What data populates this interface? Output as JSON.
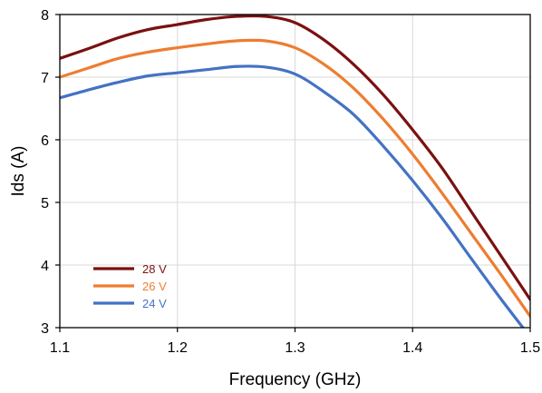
{
  "chart_data": {
    "type": "line",
    "xlabel": "Frequency (GHz)",
    "ylabel": "Ids (A)",
    "xlim": [
      1.1,
      1.5
    ],
    "ylim": [
      3,
      8
    ],
    "xticks": [
      1.1,
      1.2,
      1.3,
      1.4,
      1.5
    ],
    "xtick_labels": [
      "1.1",
      "1.2",
      "1.3",
      "1.4",
      "1.5"
    ],
    "yticks": [
      3,
      4,
      5,
      6,
      7,
      8
    ],
    "ytick_labels": [
      "3",
      "4",
      "5",
      "6",
      "7",
      "8"
    ],
    "grid": true,
    "legend_position": "bottom-left",
    "series": [
      {
        "name": "28 V",
        "color": "#7b1010",
        "x": [
          1.1,
          1.125,
          1.15,
          1.175,
          1.2,
          1.225,
          1.25,
          1.275,
          1.3,
          1.325,
          1.35,
          1.375,
          1.4,
          1.425,
          1.45,
          1.475,
          1.5
        ],
        "y": [
          7.3,
          7.46,
          7.63,
          7.76,
          7.84,
          7.92,
          7.97,
          7.97,
          7.87,
          7.59,
          7.2,
          6.72,
          6.16,
          5.55,
          4.85,
          4.15,
          3.45
        ]
      },
      {
        "name": "26 V",
        "color": "#ed7d31",
        "x": [
          1.1,
          1.125,
          1.15,
          1.175,
          1.2,
          1.225,
          1.25,
          1.275,
          1.3,
          1.325,
          1.35,
          1.375,
          1.4,
          1.425,
          1.45,
          1.475,
          1.5
        ],
        "y": [
          7.0,
          7.15,
          7.3,
          7.4,
          7.47,
          7.53,
          7.58,
          7.58,
          7.47,
          7.2,
          6.82,
          6.33,
          5.77,
          5.15,
          4.5,
          3.85,
          3.18
        ]
      },
      {
        "name": "24 V",
        "color": "#4472c4",
        "x": [
          1.1,
          1.125,
          1.15,
          1.175,
          1.2,
          1.225,
          1.25,
          1.275,
          1.3,
          1.325,
          1.35,
          1.375,
          1.4,
          1.425,
          1.45,
          1.475,
          1.5
        ],
        "y": [
          6.67,
          6.8,
          6.92,
          7.02,
          7.07,
          7.12,
          7.17,
          7.16,
          7.05,
          6.76,
          6.4,
          5.9,
          5.35,
          4.75,
          4.1,
          3.46,
          2.85
        ]
      }
    ]
  }
}
